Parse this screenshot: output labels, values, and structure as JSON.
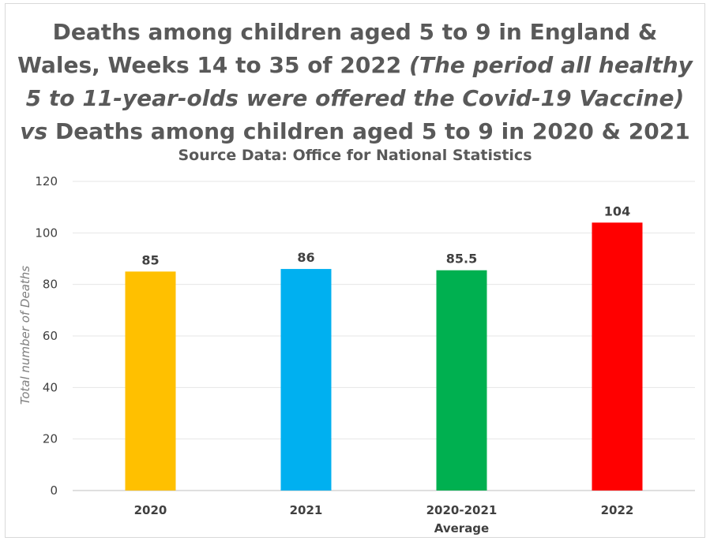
{
  "chart_data": {
    "type": "bar",
    "title_lines": [
      [
        {
          "text": "Deaths among children aged 5 to 9 in England &",
          "italic": false
        }
      ],
      [
        {
          "text": "Wales, Weeks 14 to 35 of 2022 ",
          "italic": false
        },
        {
          "text": "(The period all healthy",
          "italic": true
        }
      ],
      [
        {
          "text": "5 to 11-year-olds were offered the Covid-19 Vaccine)",
          "italic": true
        }
      ],
      [
        {
          "text": "vs",
          "italic": true
        },
        {
          "text": " Deaths among children aged 5 to 9 in 2020 & 2021",
          "italic": false
        }
      ]
    ],
    "subtitle": "Source Data: Office for National Statistics",
    "ylabel": "Total number of Deaths",
    "xlabel": "",
    "ylim": [
      0,
      120
    ],
    "yticks": [
      0,
      20,
      40,
      60,
      80,
      100,
      120
    ],
    "grid": true,
    "legend": "none",
    "categories": [
      {
        "label_lines": [
          "2020"
        ],
        "value": 85,
        "data_label": "85",
        "color": "#ffc000"
      },
      {
        "label_lines": [
          "2021"
        ],
        "value": 86,
        "data_label": "86",
        "color": "#00b0f0"
      },
      {
        "label_lines": [
          "2020-2021",
          "Average"
        ],
        "value": 85.5,
        "data_label": "85.5",
        "color": "#00b050"
      },
      {
        "label_lines": [
          "2022"
        ],
        "value": 104,
        "data_label": "104",
        "color": "#ff0000"
      }
    ]
  }
}
